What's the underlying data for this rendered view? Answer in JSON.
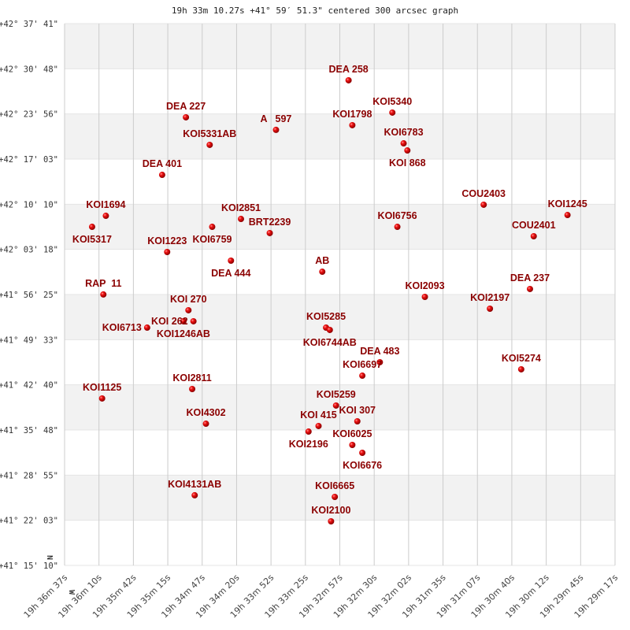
{
  "chart_data": {
    "type": "scatter",
    "title": "19h 33m 10.27s +41° 59′ 51.3\" centered 300 arcsec graph",
    "compass": {
      "north": "N",
      "west": "W"
    },
    "x_ticks": [
      "19h 36m 37s",
      "19h 36m 10s",
      "19h 35m 42s",
      "19h 35m 15s",
      "19h 34m 47s",
      "19h 34m 20s",
      "19h 33m 52s",
      "19h 33m 25s",
      "19h 32m 57s",
      "19h 32m 30s",
      "19h 32m 02s",
      "19h 31m 35s",
      "19h 31m 07s",
      "19h 30m 40s",
      "19h 30m 12s",
      "19h 29m 45s",
      "19h 29m 17s"
    ],
    "y_ticks": [
      "+42° 37' 41\"",
      "+42° 30' 48\"",
      "+42° 23' 56\"",
      "+42° 17' 03\"",
      "+42° 10' 10\"",
      "+42° 03' 18\"",
      "+41° 56' 25\"",
      "+41° 49' 33\"",
      "+41° 42' 40\"",
      "+41° 35' 48\"",
      "+41° 28' 55\"",
      "+41° 22' 03\"",
      "+41° 15' 10\""
    ],
    "xlim": [
      "19h 36m 37s",
      "19h 29m 17s"
    ],
    "ylim": [
      "+41° 15' 10\"",
      "+42° 37' 41\""
    ],
    "grid": true,
    "colors": {
      "marker": "#dd0000",
      "label": "#8b0000",
      "band": "#f2f2f2",
      "grid": "#cccccc"
    },
    "points": [
      {
        "name": "DEA 258",
        "ra": "19h 32m 50s",
        "dec": "+42° 29' 03\""
      },
      {
        "name": "DEA 227",
        "ra": "19h 35m 00s",
        "dec": "+42° 23' 25\""
      },
      {
        "name": "A   597",
        "ra": "19h 33m 48s",
        "dec": "+42° 21' 30\""
      },
      {
        "name": "KOI5340",
        "ra": "19h 32m 15s",
        "dec": "+42° 24' 08\""
      },
      {
        "name": "KOI1798",
        "ra": "19h 32m 47s",
        "dec": "+42° 22' 13\""
      },
      {
        "name": "KOI6783",
        "ra": "19h 32m 06s",
        "dec": "+42° 19' 27\""
      },
      {
        "name": "KOI 868",
        "ra": "19h 32m 03s",
        "dec": "+42° 18' 22\""
      },
      {
        "name": "KOI5331AB",
        "ra": "19h 34m 41s",
        "dec": "+42° 19' 13\""
      },
      {
        "name": "DEA 401",
        "ra": "19h 35m 19s",
        "dec": "+42° 14' 39\""
      },
      {
        "name": "COU2403",
        "ra": "19h 31m 02s",
        "dec": "+42° 10' 06\""
      },
      {
        "name": "KOI1245",
        "ra": "19h 29m 55s",
        "dec": "+42° 08' 32\""
      },
      {
        "name": "KOI1694",
        "ra": "19h 36m 04s",
        "dec": "+42° 08' 25\""
      },
      {
        "name": "KOI5317",
        "ra": "19h 36m 15s",
        "dec": "+42° 06' 44\""
      },
      {
        "name": "KOI2851",
        "ra": "19h 34m 16s",
        "dec": "+42° 07' 56\""
      },
      {
        "name": "KOI6759",
        "ra": "19h 34m 39s",
        "dec": "+42° 06' 44\""
      },
      {
        "name": "KOI6756",
        "ra": "19h 32m 11s",
        "dec": "+42° 06' 44\""
      },
      {
        "name": "BRT2239",
        "ra": "19h 33m 53s",
        "dec": "+42° 05' 47\""
      },
      {
        "name": "COU2401",
        "ra": "19h 30m 22s",
        "dec": "+42° 05' 18\""
      },
      {
        "name": "KOI1223",
        "ra": "19h 35m 15s",
        "dec": "+42° 02' 54\""
      },
      {
        "name": "DEA 444",
        "ra": "19h 34m 24s",
        "dec": "+42° 01' 35\""
      },
      {
        "name": "AB",
        "ra": "19h 33m 11s",
        "dec": "+41° 59' 54\""
      },
      {
        "name": "RAP  11",
        "ra": "19h 36m 06s",
        "dec": "+41° 56' 26\""
      },
      {
        "name": "KOI2093",
        "ra": "19h 31m 49s",
        "dec": "+41° 56' 04\""
      },
      {
        "name": "DEA 237",
        "ra": "19h 30m 25s",
        "dec": "+41° 57' 16\""
      },
      {
        "name": "KOI2197",
        "ra": "19h 30m 57s",
        "dec": "+41° 54' 16\""
      },
      {
        "name": "KOI 270",
        "ra": "19h 34m 58s",
        "dec": "+41° 54' 02\""
      },
      {
        "name": "KOI1246AB",
        "ra": "19h 35m 02s",
        "dec": "+41° 52' 21\""
      },
      {
        "name": "KOI 262",
        "ra": "19h 34m 54s",
        "dec": "+41° 52' 21\""
      },
      {
        "name": "KOI6713",
        "ra": "19h 35m 31s",
        "dec": "+41° 51' 23\""
      },
      {
        "name": "KOI5285",
        "ra": "19h 33m 08s",
        "dec": "+41° 51' 23\""
      },
      {
        "name": "KOI6744AB",
        "ra": "19h 33m 05s",
        "dec": "+41° 51' 02\""
      },
      {
        "name": "DEA 483",
        "ra": "19h 32m 25s",
        "dec": "+41° 46' 07\""
      },
      {
        "name": "KOI6697",
        "ra": "19h 32m 39s",
        "dec": "+41° 44' 04\""
      },
      {
        "name": "KOI5274",
        "ra": "19h 30m 32s",
        "dec": "+41° 45' 02\""
      },
      {
        "name": "KOI2811",
        "ra": "19h 34m 55s",
        "dec": "+41° 42' 02\""
      },
      {
        "name": "KOI1125",
        "ra": "19h 36m 07s",
        "dec": "+41° 40' 36\""
      },
      {
        "name": "KOI5259",
        "ra": "19h 33m 00s",
        "dec": "+41° 39' 31\""
      },
      {
        "name": "KOI 307",
        "ra": "19h 32m 43s",
        "dec": "+41° 37' 07\""
      },
      {
        "name": "KOI 415",
        "ra": "19h 33m 14s",
        "dec": "+41° 36' 24\""
      },
      {
        "name": "KOI2196",
        "ra": "19h 33m 22s",
        "dec": "+41° 35' 33\""
      },
      {
        "name": "KOI6025",
        "ra": "19h 32m 47s",
        "dec": "+41° 33' 31\""
      },
      {
        "name": "KOI6676",
        "ra": "19h 32m 39s",
        "dec": "+41° 32' 19\""
      },
      {
        "name": "KOI4302",
        "ra": "19h 34m 44s",
        "dec": "+41° 36' 45\""
      },
      {
        "name": "KOI4131AB",
        "ra": "19h 34m 53s",
        "dec": "+41° 25' 51\""
      },
      {
        "name": "KOI6665",
        "ra": "19h 33m 01s",
        "dec": "+41° 25' 36\""
      },
      {
        "name": "KOI2100",
        "ra": "19h 33m 04s",
        "dec": "+41° 21' 53\""
      }
    ]
  }
}
